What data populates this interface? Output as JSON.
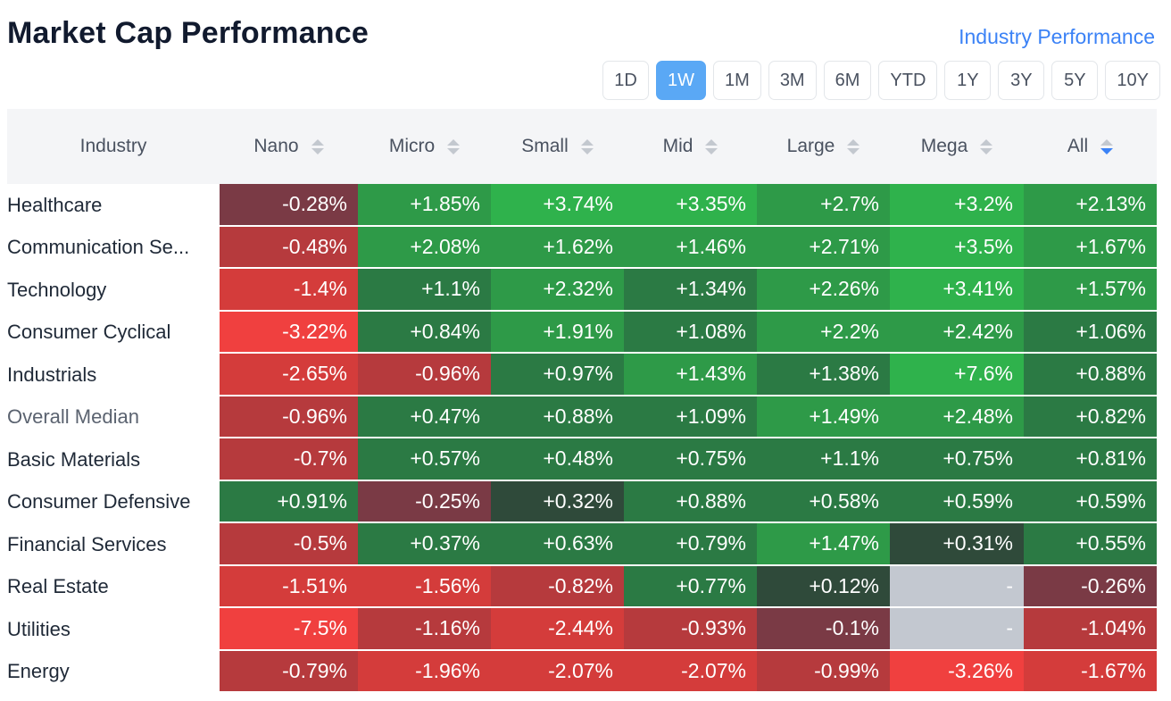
{
  "title": "Market Cap Performance",
  "industry_link": "Industry Performance",
  "periods": [
    "1D",
    "1W",
    "1M",
    "3M",
    "6M",
    "YTD",
    "1Y",
    "3Y",
    "5Y",
    "10Y"
  ],
  "active_period": "1W",
  "headers": [
    "Industry",
    "Nano",
    "Micro",
    "Small",
    "Mid",
    "Large",
    "Mega",
    "All"
  ],
  "sorted_column": "All",
  "rows": [
    {
      "label": "Healthcare",
      "values": [
        "-0.28%",
        "+1.85%",
        "+3.74%",
        "+3.35%",
        "+2.7%",
        "+3.2%",
        "+2.13%"
      ]
    },
    {
      "label": "Communication Se...",
      "values": [
        "-0.48%",
        "+2.08%",
        "+1.62%",
        "+1.46%",
        "+2.71%",
        "+3.5%",
        "+1.67%"
      ]
    },
    {
      "label": "Technology",
      "values": [
        "-1.4%",
        "+1.1%",
        "+2.32%",
        "+1.34%",
        "+2.26%",
        "+3.41%",
        "+1.57%"
      ]
    },
    {
      "label": "Consumer Cyclical",
      "values": [
        "-3.22%",
        "+0.84%",
        "+1.91%",
        "+1.08%",
        "+2.2%",
        "+2.42%",
        "+1.06%"
      ]
    },
    {
      "label": "Industrials",
      "values": [
        "-2.65%",
        "-0.96%",
        "+0.97%",
        "+1.43%",
        "+1.38%",
        "+7.6%",
        "+0.88%"
      ]
    },
    {
      "label": "Overall Median",
      "values": [
        "-0.96%",
        "+0.47%",
        "+0.88%",
        "+1.09%",
        "+1.49%",
        "+2.48%",
        "+0.82%"
      ]
    },
    {
      "label": "Basic Materials",
      "values": [
        "-0.7%",
        "+0.57%",
        "+0.48%",
        "+0.75%",
        "+1.1%",
        "+0.75%",
        "+0.81%"
      ]
    },
    {
      "label": "Consumer Defensive",
      "values": [
        "+0.91%",
        "-0.25%",
        "+0.32%",
        "+0.88%",
        "+0.58%",
        "+0.59%",
        "+0.59%"
      ]
    },
    {
      "label": "Financial Services",
      "values": [
        "-0.5%",
        "+0.37%",
        "+0.63%",
        "+0.79%",
        "+1.47%",
        "+0.31%",
        "+0.55%"
      ]
    },
    {
      "label": "Real Estate",
      "values": [
        "-1.51%",
        "-1.56%",
        "-0.82%",
        "+0.77%",
        "+0.12%",
        "-",
        "-0.26%"
      ]
    },
    {
      "label": "Utilities",
      "values": [
        "-7.5%",
        "-1.16%",
        "-2.44%",
        "-0.93%",
        "-0.1%",
        "-",
        "-1.04%"
      ]
    },
    {
      "label": "Energy",
      "values": [
        "-0.79%",
        "-1.96%",
        "-2.07%",
        "-2.07%",
        "-0.99%",
        "-3.26%",
        "-1.67%"
      ]
    }
  ],
  "colors": {
    "accent": "#3b82f6",
    "active_period_bg": "#5aa8f5",
    "green_strong": "#2fb24c",
    "green_mid": "#2e9a48",
    "green_dark": "#2b7a44",
    "green_darkest": "#2f4a3a",
    "red_strong": "#f0403f",
    "red_mid": "#d43c3b",
    "red_dark": "#b63a3d",
    "red_darkest": "#7a3a45",
    "empty": "#c3c8d0"
  }
}
